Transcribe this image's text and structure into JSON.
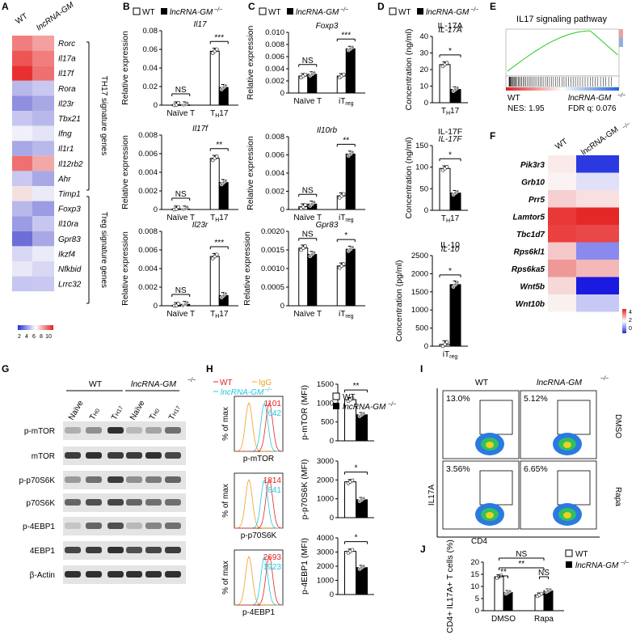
{
  "panel_letters": [
    "A",
    "B",
    "C",
    "D",
    "E",
    "F",
    "G",
    "H",
    "I",
    "J"
  ],
  "legend": {
    "wt": "WT",
    "ko": "lncRNA-GM",
    "ko_sup": "−/−"
  },
  "panelA": {
    "col_labels": [
      "WT",
      "lncRNA-GM"
    ],
    "col_sup": "−/−",
    "genes": [
      "Rorc",
      "Il17a",
      "Il17f",
      "Rora",
      "Il23r",
      "Tbx21",
      "Ifng",
      "Il1r1",
      "Il12rb2",
      "Ahr",
      "Timp1",
      "Foxp3",
      "Il10ra",
      "Gpr83",
      "Ikzf4",
      "Nfkbid",
      "Lrrc32"
    ],
    "wt_colors": [
      "#f07e7e",
      "#ee5555",
      "#e83030",
      "#b8b8ea",
      "#8f8fe0",
      "#c6c6f0",
      "#f0f0fa",
      "#a8a8e6",
      "#ee7070",
      "#c8c8f0",
      "#f5e0e0",
      "#b8b8ea",
      "#9c9ce4",
      "#6e6ed8",
      "#d8d8f4",
      "#e8e8f8",
      "#c6c6f0"
    ],
    "ko_colors": [
      "#f2a0a0",
      "#f07e7e",
      "#ee7070",
      "#c8c8f0",
      "#a8a8e6",
      "#b8b8ea",
      "#e4e4f6",
      "#b8b8ea",
      "#f2a8a8",
      "#a8a8e6",
      "#ebebf8",
      "#9c9ce4",
      "#c6c6f0",
      "#a8a8e6",
      "#ebebf8",
      "#d8d8f4",
      "#c8c8f0"
    ],
    "group1": "TH17 signature genes",
    "group2": "Treg signature genes",
    "scale_ticks": [
      "2",
      "4",
      "6",
      "8",
      "10"
    ]
  },
  "chart_data": [
    {
      "id": "B1",
      "type": "bar",
      "title": "Il17",
      "ylabel": "Relative expression",
      "categories": [
        "Naïve T",
        "TH17"
      ],
      "series": [
        {
          "name": "WT",
          "values": [
            0.0003,
            0.058
          ]
        },
        {
          "name": "lncRNA-GM-/-",
          "values": [
            0.0003,
            0.019
          ]
        }
      ],
      "ylim": [
        0,
        0.08
      ],
      "yticks": [
        "0",
        "0.02",
        "0.04",
        "0.06",
        "0.08"
      ],
      "sig": [
        "NS",
        "***"
      ]
    },
    {
      "id": "B2",
      "type": "bar",
      "title": "Il17f",
      "ylabel": "Relative expression",
      "categories": [
        "Naïve T",
        "TH17"
      ],
      "series": [
        {
          "name": "WT",
          "values": [
            5e-05,
            0.0055
          ]
        },
        {
          "name": "lncRNA-GM-/-",
          "values": [
            5e-05,
            0.0029
          ]
        }
      ],
      "ylim": [
        0,
        0.008
      ],
      "yticks": [
        "0",
        "0.002",
        "0.004",
        "0.006",
        "0.008"
      ],
      "sig": [
        "NS",
        "**"
      ]
    },
    {
      "id": "B3",
      "type": "bar",
      "title": "Il23r",
      "ylabel": "Relative expression",
      "categories": [
        "Naïve T",
        "TH17"
      ],
      "series": [
        {
          "name": "WT",
          "values": [
            2e-05,
            0.0053
          ]
        },
        {
          "name": "lncRNA-GM-/-",
          "values": [
            0.00015,
            0.0011
          ]
        }
      ],
      "ylim": [
        0,
        0.008
      ],
      "yticks": [
        "0",
        "0.002",
        "0.004",
        "0.006",
        "0.008"
      ],
      "sig": [
        "NS",
        "***"
      ]
    },
    {
      "id": "C1",
      "type": "bar",
      "title": "Foxp3",
      "ylabel": "Relative expression",
      "categories": [
        "Naïve T",
        "iTreg"
      ],
      "series": [
        {
          "name": "WT",
          "values": [
            0.0028,
            0.0028
          ]
        },
        {
          "name": "lncRNA-GM-/-",
          "values": [
            0.0031,
            0.0073
          ]
        }
      ],
      "ylim": [
        0,
        0.01
      ],
      "yticks": [
        "0",
        "0.002",
        "0.004",
        "0.006",
        "0.008",
        "0.010"
      ],
      "sig": [
        "NS",
        "***"
      ]
    },
    {
      "id": "C2",
      "type": "bar",
      "title": "Il10rb",
      "ylabel": "Relative expression",
      "categories": [
        "Naïve T",
        "iTreg"
      ],
      "series": [
        {
          "name": "WT",
          "values": [
            0.0003,
            0.0015
          ]
        },
        {
          "name": "lncRNA-GM-/-",
          "values": [
            0.0006,
            0.0061
          ]
        }
      ],
      "ylim": [
        0,
        0.008
      ],
      "yticks": [
        "0",
        "0.002",
        "0.004",
        "0.006",
        "0.008"
      ],
      "sig": [
        "NS",
        "**"
      ]
    },
    {
      "id": "C3",
      "type": "bar",
      "title": "Gpr83",
      "ylabel": "Relative expression",
      "categories": [
        "Naïve T",
        "iTreg"
      ],
      "series": [
        {
          "name": "WT",
          "values": [
            0.00155,
            0.00107
          ]
        },
        {
          "name": "lncRNA-GM-/-",
          "values": [
            0.00138,
            0.00152
          ]
        }
      ],
      "ylim": [
        0,
        0.002
      ],
      "yticks": [
        "0",
        "0.0005",
        "0.0010",
        "0.0015",
        "0.0020"
      ],
      "sig": [
        "NS",
        "*"
      ]
    },
    {
      "id": "D1",
      "type": "bar",
      "title": "IL-17A",
      "ylabel": "Concentration (ng/ml)",
      "categories": [
        "TH17"
      ],
      "series": [
        {
          "name": "WT",
          "values": [
            23
          ]
        },
        {
          "name": "lncRNA-GM-/-",
          "values": [
            8
          ]
        }
      ],
      "ylim": [
        0,
        40
      ],
      "yticks": [
        "0",
        "10",
        "20",
        "30",
        "40"
      ],
      "sig": [
        "*"
      ]
    },
    {
      "id": "D2",
      "type": "bar",
      "title": "IL-17F",
      "ylabel": "Concentration (ng/ml)",
      "categories": [
        "TH17"
      ],
      "series": [
        {
          "name": "WT",
          "values": [
            97
          ]
        },
        {
          "name": "lncRNA-GM-/-",
          "values": [
            40
          ]
        }
      ],
      "ylim": [
        0,
        150
      ],
      "yticks": [
        "0",
        "50",
        "100",
        "150"
      ],
      "sig": [
        "*"
      ]
    },
    {
      "id": "D3",
      "type": "bar",
      "title": "IL-10",
      "ylabel": "Concentration (pg/ml)",
      "categories": [
        "iTreg"
      ],
      "series": [
        {
          "name": "WT",
          "values": [
            50
          ]
        },
        {
          "name": "lncRNA-GM-/-",
          "values": [
            1700
          ]
        }
      ],
      "ylim": [
        0,
        2500
      ],
      "yticks": [
        "0",
        "500",
        "1000",
        "1500",
        "2000",
        "2500"
      ],
      "sig": [
        "*"
      ]
    },
    {
      "id": "H1",
      "type": "bar",
      "title": "",
      "ylabel": "p-mTOR (MFI)",
      "categories": [
        ""
      ],
      "series": [
        {
          "name": "WT",
          "values": [
            1090
          ]
        },
        {
          "name": "lncRNA-GM-/-",
          "values": [
            690
          ]
        }
      ],
      "ylim": [
        0,
        1500
      ],
      "yticks": [
        "0",
        "500",
        "1000",
        "1500"
      ],
      "sig": [
        "**"
      ]
    },
    {
      "id": "H2",
      "type": "bar",
      "title": "",
      "ylabel": "p-p70S6K (MFI)",
      "categories": [
        ""
      ],
      "series": [
        {
          "name": "WT",
          "values": [
            1900
          ]
        },
        {
          "name": "lncRNA-GM-/-",
          "values": [
            950
          ]
        }
      ],
      "ylim": [
        0,
        3000
      ],
      "yticks": [
        "0",
        "1000",
        "2000",
        "3000"
      ],
      "sig": [
        "*"
      ]
    },
    {
      "id": "H3",
      "type": "bar",
      "title": "",
      "ylabel": "p-4EBP1 (MFI)",
      "categories": [
        ""
      ],
      "series": [
        {
          "name": "WT",
          "values": [
            3050
          ]
        },
        {
          "name": "lncRNA-GM-/-",
          "values": [
            1900
          ]
        }
      ],
      "ylim": [
        0,
        4000
      ],
      "yticks": [
        "0",
        "1000",
        "2000",
        "3000",
        "4000"
      ],
      "sig": [
        "*"
      ]
    },
    {
      "id": "J",
      "type": "bar",
      "title": "",
      "ylabel": "CD4+ IL17A+ T cells (%)",
      "categories": [
        "DMSO",
        "Rapa"
      ],
      "series": [
        {
          "name": "WT",
          "values": [
            14,
            6.5
          ]
        },
        {
          "name": "lncRNA-GM-/-",
          "values": [
            7.5,
            8.2
          ]
        }
      ],
      "ylim": [
        0,
        20
      ],
      "yticks": [
        "0",
        "5",
        "10",
        "15",
        "20"
      ],
      "sig": [
        "**",
        "NS",
        "**",
        "NS"
      ]
    }
  ],
  "panelE": {
    "title": "IL17 signaling pathway",
    "nes": "NES: 1.95",
    "fdr": "FDR q: 0.076",
    "left": "WT",
    "right": "lncRNA-GM"
  },
  "panelF": {
    "col_labels": [
      "WT",
      "lncRNA-GM"
    ],
    "genes": [
      "Pik3r3",
      "Grb10",
      "Prr5",
      "Lamtor5",
      "Tbc1d7",
      "Rps6kl1",
      "Rps6ka5",
      "Wnt5b",
      "Wnt10b"
    ],
    "wt_colors": [
      "#fbeaea",
      "#fbf3f3",
      "#f6d0d0",
      "#e83838",
      "#ea4040",
      "#f4c8c8",
      "#ef9898",
      "#f6d8d8",
      "#fbf0f0"
    ],
    "ko_colors": [
      "#2a3ae0",
      "#e0e0f8",
      "#f8e0e0",
      "#e42828",
      "#e84848",
      "#8a8aee",
      "#f4b8b8",
      "#1a1ae0",
      "#c8c8f4"
    ],
    "scale_ticks": [
      "4",
      "2",
      "0"
    ]
  },
  "panelG": {
    "groups": [
      "WT",
      "lncRNA-GM"
    ],
    "lanes": [
      "Naïve",
      "TH0",
      "TH17",
      "Naïve",
      "TH0",
      "TH17"
    ],
    "rows": [
      "p-mTOR",
      "mTOR",
      "p-p70S6K",
      "p70S6K",
      "p-4EBP1",
      "4EBP1",
      "β-Actin"
    ]
  },
  "panelH": {
    "legend": [
      "WT",
      "IgG",
      "lncRNA-GM"
    ],
    "colors": [
      "#e82020",
      "#f0a020",
      "#20c8e0"
    ],
    "plots": [
      {
        "xlabel": "p-mTOR",
        "wt_mfi": "1101",
        "ko_mfi": "642"
      },
      {
        "xlabel": "p-p70S6K",
        "wt_mfi": "1814",
        "ko_mfi": "841"
      },
      {
        "xlabel": "p-4EBP1",
        "wt_mfi": "2693",
        "ko_mfi": "1923"
      }
    ],
    "ylabel": "% of max"
  },
  "panelI": {
    "cols": [
      "WT",
      "lncRNA-GM"
    ],
    "rows": [
      "DMSO",
      "Rapa"
    ],
    "percents": [
      "13.0%",
      "5.12%",
      "3.56%",
      "6.65%"
    ],
    "xlabel": "CD4",
    "ylabel": "IL17A"
  },
  "colors": {
    "wt_fill": "#ffffff",
    "ko_fill": "#000000"
  }
}
